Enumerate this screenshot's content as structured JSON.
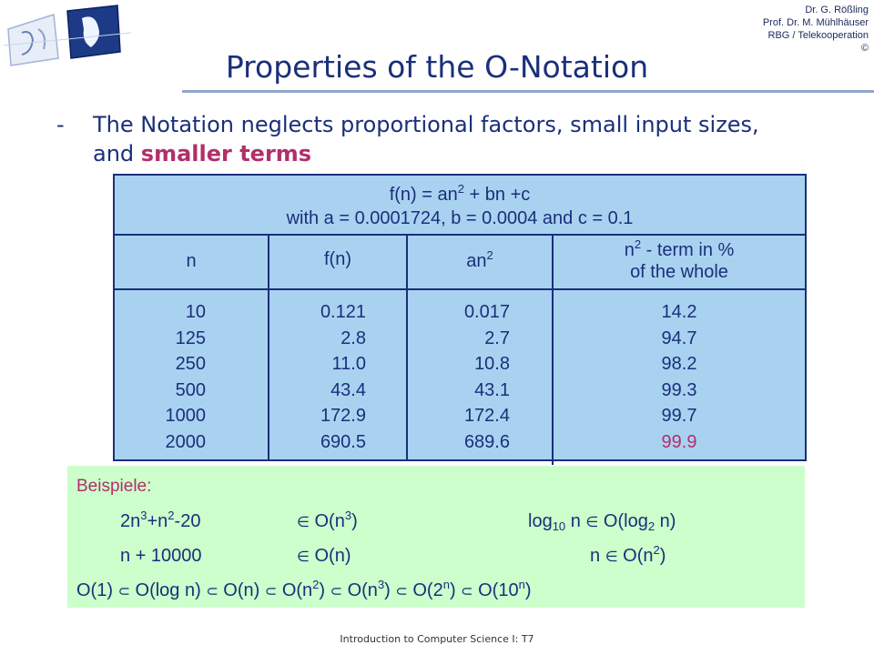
{
  "credits": [
    "Dr. G. Rößling",
    "Prof. Dr. M. Mühlhäuser",
    "RBG / Telekooperation",
    "©"
  ],
  "title": "Properties of the O-Notation",
  "bullet": {
    "dash": "-",
    "text": "The Notation neglects proportional factors, small input sizes, and ",
    "highlight": "smaller terms"
  },
  "table": {
    "formula_line1_a": "f(n) = an",
    "formula_line1_exp": "2",
    "formula_line1_b": " + bn +c",
    "formula_line2": "with a = 0.0001724, b = 0.0004 and c = 0.1",
    "headers": {
      "n": "n",
      "fn": "f(n)",
      "an2_base": "an",
      "an2_exp": "2",
      "pct_base": "n",
      "pct_exp": "2",
      "pct_rest": " - term in %",
      "pct_line2": "of the whole"
    },
    "n": [
      "10",
      "125",
      "250",
      "500",
      "1000",
      "2000"
    ],
    "fn": [
      "0.121",
      "2.8",
      "11.0",
      "43.4",
      "172.9",
      "690.5"
    ],
    "an2": [
      "0.017",
      "2.7",
      "10.8",
      "43.1",
      "172.4",
      "689.6"
    ],
    "pct": [
      "14.2",
      "94.7",
      "98.2",
      "99.3",
      "99.7",
      "99.9"
    ]
  },
  "examples": {
    "label": "Beispiele:",
    "element_of": "∈",
    "subset": "⊂",
    "ex1_left_a": "2n",
    "ex1_left_exp1": "3",
    "ex1_left_b": "+n",
    "ex1_left_exp2": "2",
    "ex1_left_c": "-20",
    "ex1_mid_a": "O(n",
    "ex1_mid_exp": "3",
    "ex1_mid_b": ")",
    "ex1_right_a": "log",
    "ex1_right_sub1": "10",
    "ex1_right_b": " n ",
    "ex1_right_c": " O(log",
    "ex1_right_sub2": "2",
    "ex1_right_d": " n)",
    "ex2_left": "n + 10000",
    "ex2_mid": "O(n)",
    "ex2_right_a": "n ",
    "ex2_right_b": " O(n",
    "ex2_right_exp": "2",
    "ex2_right_c": ")",
    "chain": {
      "t1": "O(1) ",
      "t2": " O(log n) ",
      "t3": " O(n) ",
      "t4": " O(n",
      "t4_exp": "2",
      "t4_close": ") ",
      "t5": " O(n",
      "t5_exp": "3",
      "t5_close": ") ",
      "t6": " O(2",
      "t6_exp": "n",
      "t6_close": ") ",
      "t7": " O(10",
      "t7_exp": "n",
      "t7_close": ")"
    }
  },
  "footer": "Introduction to Computer Science I: T7",
  "colors": {
    "title": "#1a2f7a",
    "highlight": "#b0306a",
    "table_bg": "#a9d2f1",
    "examples_bg": "#ccffcc"
  }
}
